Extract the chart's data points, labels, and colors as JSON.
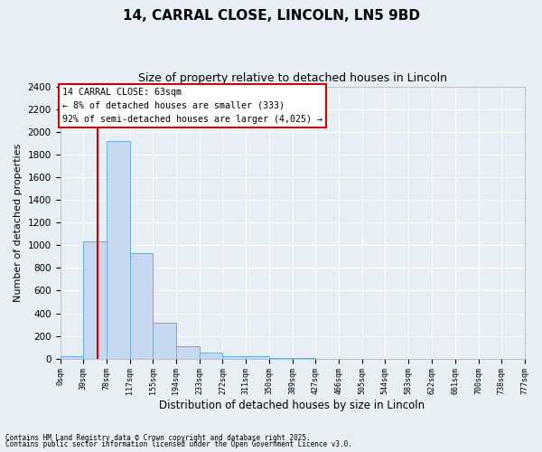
{
  "title_line1": "14, CARRAL CLOSE, LINCOLN, LN5 9BD",
  "title_line2": "Size of property relative to detached houses in Lincoln",
  "xlabel": "Distribution of detached houses by size in Lincoln",
  "ylabel": "Number of detached properties",
  "bin_edges": [
    0,
    39,
    78,
    117,
    155,
    194,
    233,
    272,
    311,
    350,
    389,
    427,
    466,
    505,
    544,
    583,
    622,
    661,
    700,
    738,
    777
  ],
  "bin_labels": [
    "0sqm",
    "39sqm",
    "78sqm",
    "117sqm",
    "155sqm",
    "194sqm",
    "233sqm",
    "272sqm",
    "311sqm",
    "350sqm",
    "389sqm",
    "427sqm",
    "466sqm",
    "505sqm",
    "544sqm",
    "583sqm",
    "622sqm",
    "661sqm",
    "700sqm",
    "738sqm",
    "777sqm"
  ],
  "bar_heights": [
    20,
    1030,
    1920,
    930,
    320,
    110,
    50,
    25,
    20,
    5,
    2,
    1,
    1,
    0,
    0,
    0,
    0,
    0,
    0,
    0
  ],
  "bar_color": "#c5d8ef",
  "bar_edge_color": "#6baed6",
  "vline_x": 63,
  "vline_color": "#cc0000",
  "ylim": [
    0,
    2400
  ],
  "yticks": [
    0,
    200,
    400,
    600,
    800,
    1000,
    1200,
    1400,
    1600,
    1800,
    2000,
    2200,
    2400
  ],
  "annotation_text": "14 CARRAL CLOSE: 63sqm\n← 8% of detached houses are smaller (333)\n92% of semi-detached houses are larger (4,025) →",
  "annotation_box_color": "#ffffff",
  "annotation_box_edge": "#cc0000",
  "background_color": "#e8eef6",
  "grid_color": "#ffffff",
  "footer_line1": "Contains HM Land Registry data © Crown copyright and database right 2025.",
  "footer_line2": "Contains public sector information licensed under the Open Government Licence v3.0."
}
